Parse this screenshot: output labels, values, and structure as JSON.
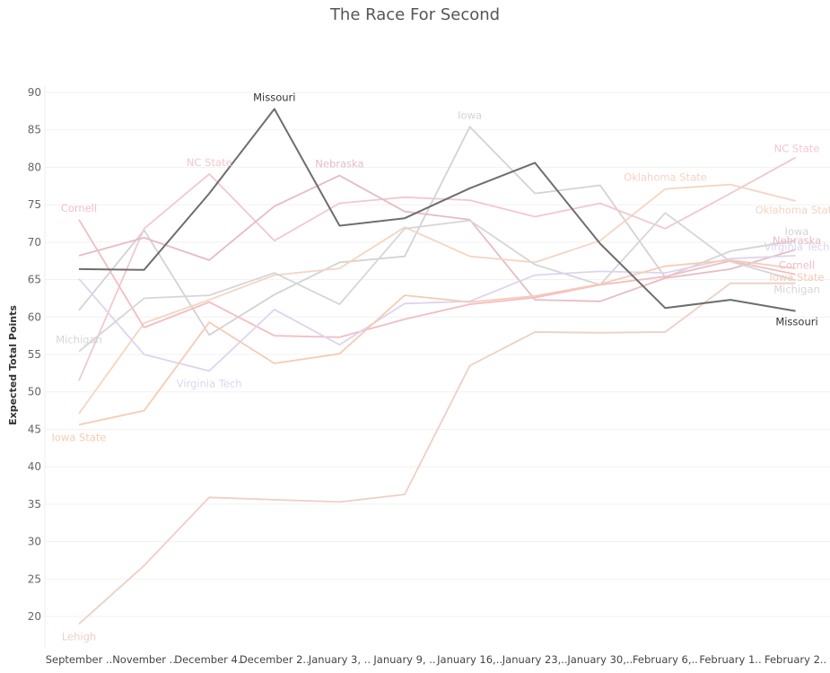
{
  "chart_data": {
    "type": "line",
    "title": "The Race For Second",
    "ylabel": "Expected Total Points",
    "xlabel": "",
    "ylim": [
      16,
      91
    ],
    "yticks": [
      20,
      25,
      30,
      35,
      40,
      45,
      50,
      55,
      60,
      65,
      70,
      75,
      80,
      85,
      90
    ],
    "categories": [
      "September ..",
      "November ..",
      "December 4..",
      "December 2..",
      "January 3, ..",
      "January 9, ..",
      "January 16,..",
      "January 23,..",
      "January 30,..",
      "February 6,..",
      "February 1..",
      "February 2.."
    ],
    "grid": true,
    "legend": "none (labels at line ends)",
    "series": [
      {
        "name": "Missouri",
        "color": "#6e6e6e",
        "emphasis": true,
        "values": [
          66.4,
          66.3,
          76.5,
          87.8,
          72.2,
          73.2,
          77.2,
          80.6,
          69.8,
          61.2,
          62.3,
          60.8
        ],
        "labels": [
          {
            "text": "Missouri",
            "at": 3,
            "pos": "above"
          },
          {
            "text": "Missouri",
            "at": 11,
            "pos": "right-below"
          }
        ]
      },
      {
        "name": "Iowa",
        "color": "#d3d3d3",
        "values": [
          60.9,
          71.6,
          57.6,
          63.0,
          67.3,
          68.1,
          85.4,
          76.5,
          77.6,
          65.3,
          68.8,
          70.2
        ],
        "labels": [
          {
            "text": "Iowa",
            "at": 6,
            "pos": "above"
          },
          {
            "text": "Iowa",
            "at": 11,
            "pos": "end-above"
          }
        ]
      },
      {
        "name": "NC State",
        "color": "#f2c8cf",
        "values": [
          51.5,
          71.8,
          79.1,
          70.2,
          75.2,
          76.0,
          75.6,
          73.4,
          75.2,
          71.8,
          76.5,
          81.3
        ],
        "labels": [
          {
            "text": "NC State",
            "at": 2,
            "pos": "above"
          },
          {
            "text": "NC State",
            "at": 11,
            "pos": "end-above"
          }
        ]
      },
      {
        "name": "Nebraska",
        "color": "#e6bcc4",
        "values": [
          68.2,
          70.6,
          67.6,
          74.8,
          78.9,
          74.1,
          73.0,
          62.3,
          62.1,
          65.2,
          66.4,
          69.0
        ],
        "labels": [
          {
            "text": "Nebraska",
            "at": 4,
            "pos": "above"
          },
          {
            "text": "Nebraska",
            "at": 11,
            "pos": "end-above"
          }
        ]
      },
      {
        "name": "Oklahoma State",
        "color": "#f4d5c3",
        "values": [
          47.1,
          59.2,
          62.3,
          65.6,
          66.5,
          72.0,
          68.1,
          67.3,
          70.2,
          77.1,
          77.7,
          75.5
        ],
        "labels": [
          {
            "text": "Oklahoma State",
            "at": 9,
            "pos": "above"
          },
          {
            "text": "Oklahoma State",
            "at": 11,
            "pos": "end-below"
          }
        ]
      },
      {
        "name": "Cornell",
        "color": "#f2bdc3",
        "values": [
          73.0,
          58.6,
          62.0,
          57.5,
          57.3,
          59.7,
          61.7,
          62.6,
          64.3,
          65.4,
          67.5,
          65.7
        ],
        "labels": [
          {
            "text": "Cornell",
            "at": 0,
            "pos": "above"
          },
          {
            "text": "Cornell",
            "at": 11,
            "pos": "end-above"
          }
        ]
      },
      {
        "name": "Michigan",
        "color": "#d6d6d6",
        "values": [
          55.4,
          62.5,
          62.9,
          65.9,
          61.7,
          71.8,
          72.9,
          67.0,
          64.3,
          73.9,
          67.4,
          64.9
        ],
        "labels": [
          {
            "text": "Michigan",
            "at": 0,
            "pos": "above"
          },
          {
            "text": "Michigan",
            "at": 11,
            "pos": "end-below"
          }
        ]
      },
      {
        "name": "Virginia Tech",
        "color": "#dfd3ef",
        "values": [
          65.1,
          55.0,
          52.8,
          61.0,
          56.3,
          61.8,
          62.1,
          65.6,
          66.1,
          65.9,
          67.8,
          68.2
        ],
        "labels": [
          {
            "text": "Virginia Tech",
            "at": 2,
            "pos": "below"
          },
          {
            "text": "Virginia Tech",
            "at": 11,
            "pos": "end-above"
          }
        ]
      },
      {
        "name": "Iowa State",
        "color": "#f6cbb6",
        "values": [
          45.6,
          47.5,
          59.3,
          53.8,
          55.1,
          62.9,
          62.0,
          62.8,
          64.4,
          66.8,
          67.6,
          66.5
        ],
        "labels": [
          {
            "text": "Iowa State",
            "at": 0,
            "pos": "below"
          },
          {
            "text": "Iowa State",
            "at": 11,
            "pos": "end-below"
          }
        ]
      },
      {
        "name": "Lehigh",
        "color": "#ecd0c4",
        "values": [
          19.0,
          26.8,
          35.9,
          35.6,
          35.3,
          36.3,
          53.5,
          58.0,
          57.9,
          58.0,
          64.5,
          64.5
        ],
        "labels": [
          {
            "text": "Lehigh",
            "at": 0,
            "pos": "below"
          }
        ]
      }
    ]
  }
}
